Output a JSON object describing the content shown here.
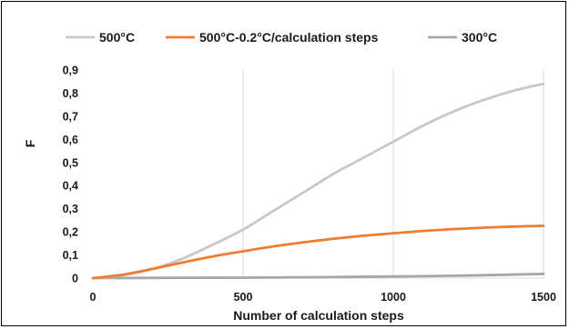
{
  "chart_data": {
    "type": "line",
    "xlabel": "Number of calculation steps",
    "ylabel": "F",
    "xlim": [
      0,
      1500
    ],
    "ylim": [
      0,
      0.9
    ],
    "x_ticks": [
      "0",
      "500",
      "1000",
      "1500"
    ],
    "y_ticks": [
      "0",
      "0,1",
      "0,2",
      "0,3",
      "0,4",
      "0,5",
      "0,6",
      "0,7",
      "0,8",
      "0,9"
    ],
    "grid": "vertical",
    "legend_position": "top",
    "series": [
      {
        "name": "500°C",
        "color": "#c8c8c8",
        "x": [
          0,
          100,
          200,
          300,
          400,
          500,
          600,
          700,
          800,
          900,
          1000,
          1100,
          1200,
          1300,
          1400,
          1500
        ],
        "y": [
          0,
          0.012,
          0.04,
          0.085,
          0.145,
          0.21,
          0.29,
          0.37,
          0.45,
          0.52,
          0.59,
          0.66,
          0.72,
          0.77,
          0.81,
          0.84
        ]
      },
      {
        "name": "500°C-0.2°C/calculation steps",
        "color": "#ed7d31",
        "x": [
          0,
          100,
          200,
          300,
          400,
          500,
          600,
          700,
          800,
          900,
          1000,
          1100,
          1200,
          1300,
          1400,
          1500
        ],
        "y": [
          0,
          0.015,
          0.04,
          0.068,
          0.094,
          0.116,
          0.137,
          0.155,
          0.17,
          0.183,
          0.194,
          0.204,
          0.212,
          0.218,
          0.223,
          0.226
        ]
      },
      {
        "name": "300°C",
        "color": "#a6a6a6",
        "x": [
          0,
          250,
          500,
          750,
          1000,
          1250,
          1500
        ],
        "y": [
          0,
          0.001,
          0.002,
          0.004,
          0.007,
          0.011,
          0.018
        ]
      }
    ]
  }
}
